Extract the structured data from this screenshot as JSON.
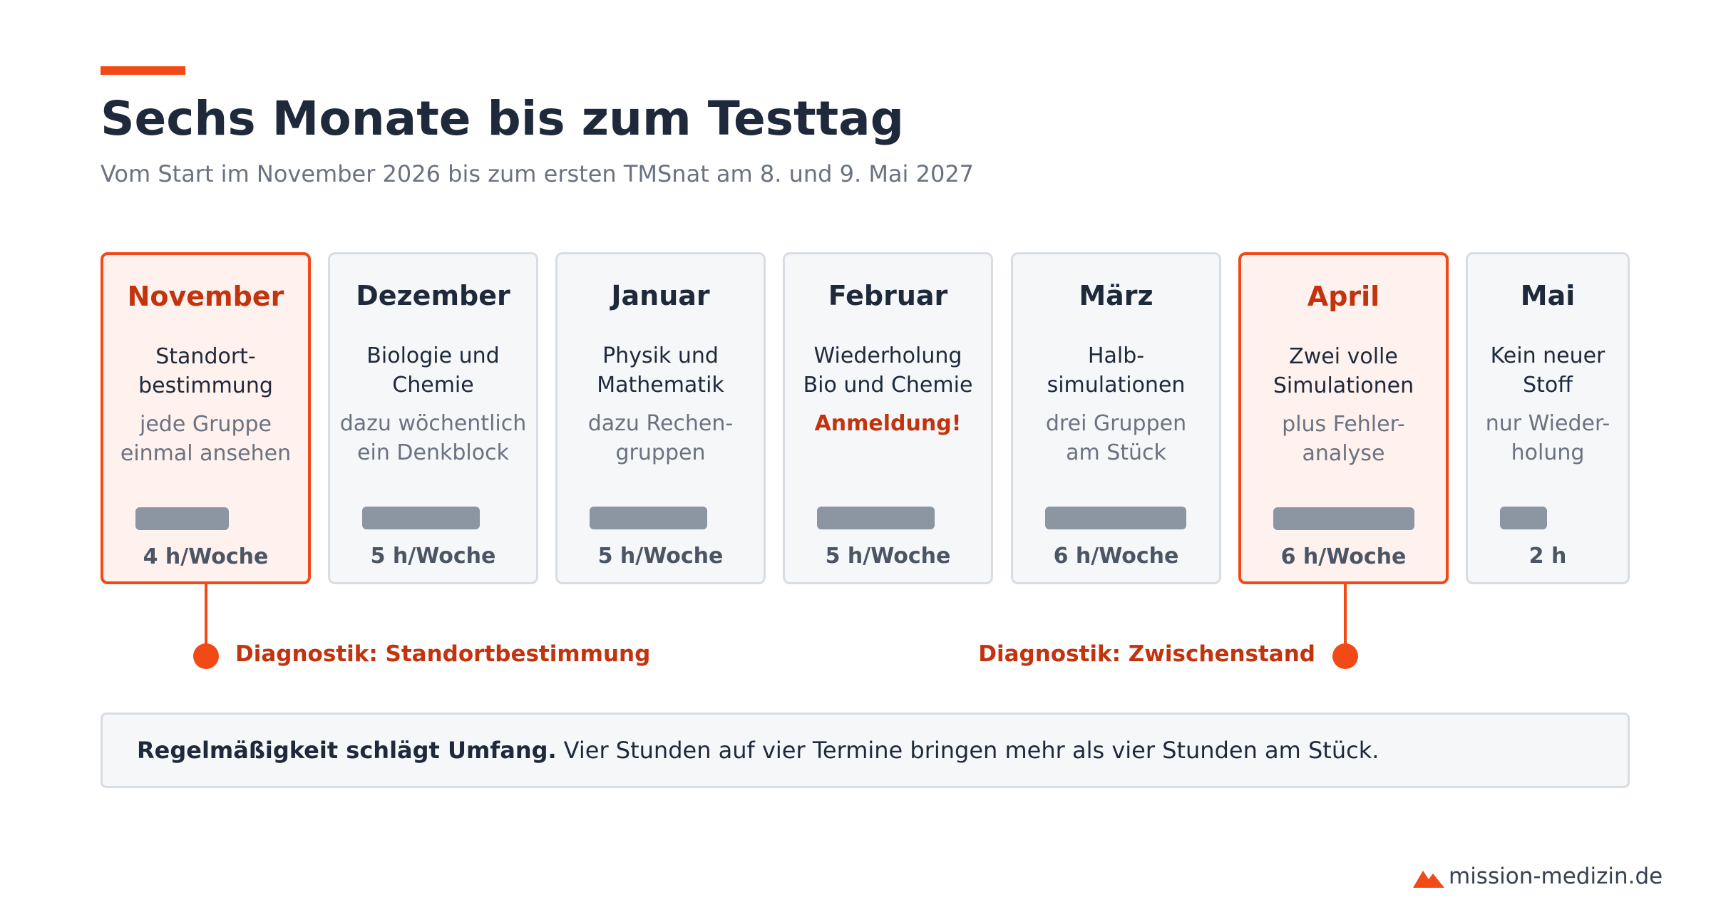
{
  "title": "Sechs Monate bis zum Testtag",
  "subtitle": "Vom Start im November 2026 bis zum ersten TMSnat am 8. und 9. Mai 2027",
  "months": [
    {
      "month": "November",
      "desc": "Standort-\nbestimmung",
      "note": "jede Gruppe\neinmal ansehen",
      "hours_label": "4 h/Woche",
      "hours": 4,
      "highlight": true
    },
    {
      "month": "Dezember",
      "desc": "Biologie und\nChemie",
      "note": "dazu wöchentlich\nein Denkblock",
      "hours_label": "5 h/Woche",
      "hours": 5,
      "highlight": false
    },
    {
      "month": "Januar",
      "desc": "Physik und\nMathematik",
      "note": "dazu Rechen-\ngruppen",
      "hours_label": "5 h/Woche",
      "hours": 5,
      "highlight": false
    },
    {
      "month": "Februar",
      "desc": "Wiederholung\nBio und Chemie",
      "note": "Anmeldung!",
      "hours_label": "5 h/Woche",
      "hours": 5,
      "highlight": false,
      "alert": true
    },
    {
      "month": "März",
      "desc": "Halb-\nsimulationen",
      "note": "drei Gruppen\nam Stück",
      "hours_label": "6 h/Woche",
      "hours": 6,
      "highlight": false
    },
    {
      "month": "April",
      "desc": "Zwei volle\nSimulationen",
      "note": "plus Fehler-\nanalyse",
      "hours_label": "6 h/Woche",
      "hours": 6,
      "highlight": true
    },
    {
      "month": "Mai",
      "desc": "Kein neuer\nStoff",
      "note": "nur Wieder-\nholung",
      "hours_label": "2 h",
      "hours": 2,
      "highlight": false
    }
  ],
  "markers": {
    "first": "Diagnostik: Standortbestimmung",
    "second": "Diagnostik: Zwischenstand"
  },
  "summary": {
    "bold": "Regelmäßigkeit schlägt Umfang.",
    "text": "Vier Stunden auf vier Termine bringen mehr als vier Stunden am Stück."
  },
  "footer": {
    "site": "mission-medizin.de",
    "logo_icon": "mountain-icon"
  },
  "colors": {
    "accent": "#f24a16",
    "accent_text": "#c2330e",
    "card_bg": "#f6f7f9",
    "card_border": "#d8dde3",
    "bar": "#8c95a2"
  }
}
